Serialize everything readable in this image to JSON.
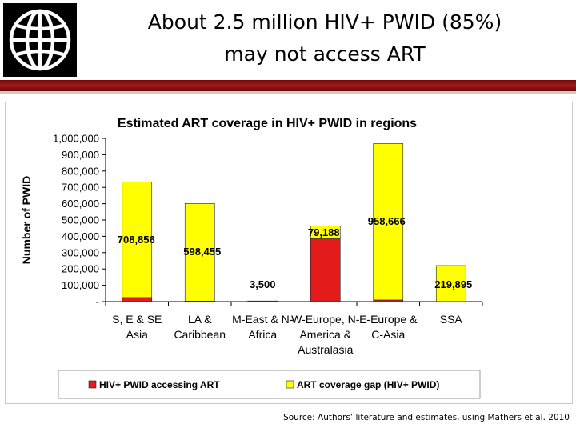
{
  "slide": {
    "title_line1": "About 2.5 million HIV+ PWID (85%)",
    "title_line2": "may not access ART",
    "source": "Source: Authors’ literature and estimates, using Mathers et al. 2010"
  },
  "logo": {
    "name": "World Bank globe logo"
  },
  "colors": {
    "accessing": "#e31b1b",
    "gap": "#ffff00",
    "rule": "#8b1515"
  },
  "chart_data": {
    "type": "bar",
    "stacked": true,
    "title": "Estimated ART coverage in HIV+ PWID in regions",
    "xlabel": "",
    "ylabel": "Number of PWID",
    "ylim": [
      0,
      1000000
    ],
    "yticks": [
      0,
      100000,
      200000,
      300000,
      400000,
      500000,
      600000,
      700000,
      800000,
      900000,
      1000000
    ],
    "ytick_labels": [
      "-",
      "100,000",
      "200,000",
      "300,000",
      "400,000",
      "500,000",
      "600,000",
      "700,000",
      "800,000",
      "900,000",
      "1,000,000"
    ],
    "categories": [
      [
        "S, E & SE",
        "Asia"
      ],
      [
        "LA &",
        "Caribbean"
      ],
      [
        "M-East & N-",
        "Africa"
      ],
      [
        "W-Europe, N-",
        "America &",
        "Australasia"
      ],
      [
        "E-Europe &",
        "C-Asia"
      ],
      [
        "SSA"
      ]
    ],
    "series": [
      {
        "name": "HIV+ PWID accessing ART",
        "values": [
          25000,
          3000,
          500,
          385000,
          10000,
          800
        ]
      },
      {
        "name": "ART coverage gap (HIV+ PWID)",
        "values": [
          708856,
          598455,
          3500,
          79188,
          958666,
          219895
        ]
      }
    ],
    "data_labels": [
      "708,856",
      "598,455",
      "3,500",
      "79,188",
      "958,666",
      "219,895"
    ],
    "legend": "bottom"
  }
}
